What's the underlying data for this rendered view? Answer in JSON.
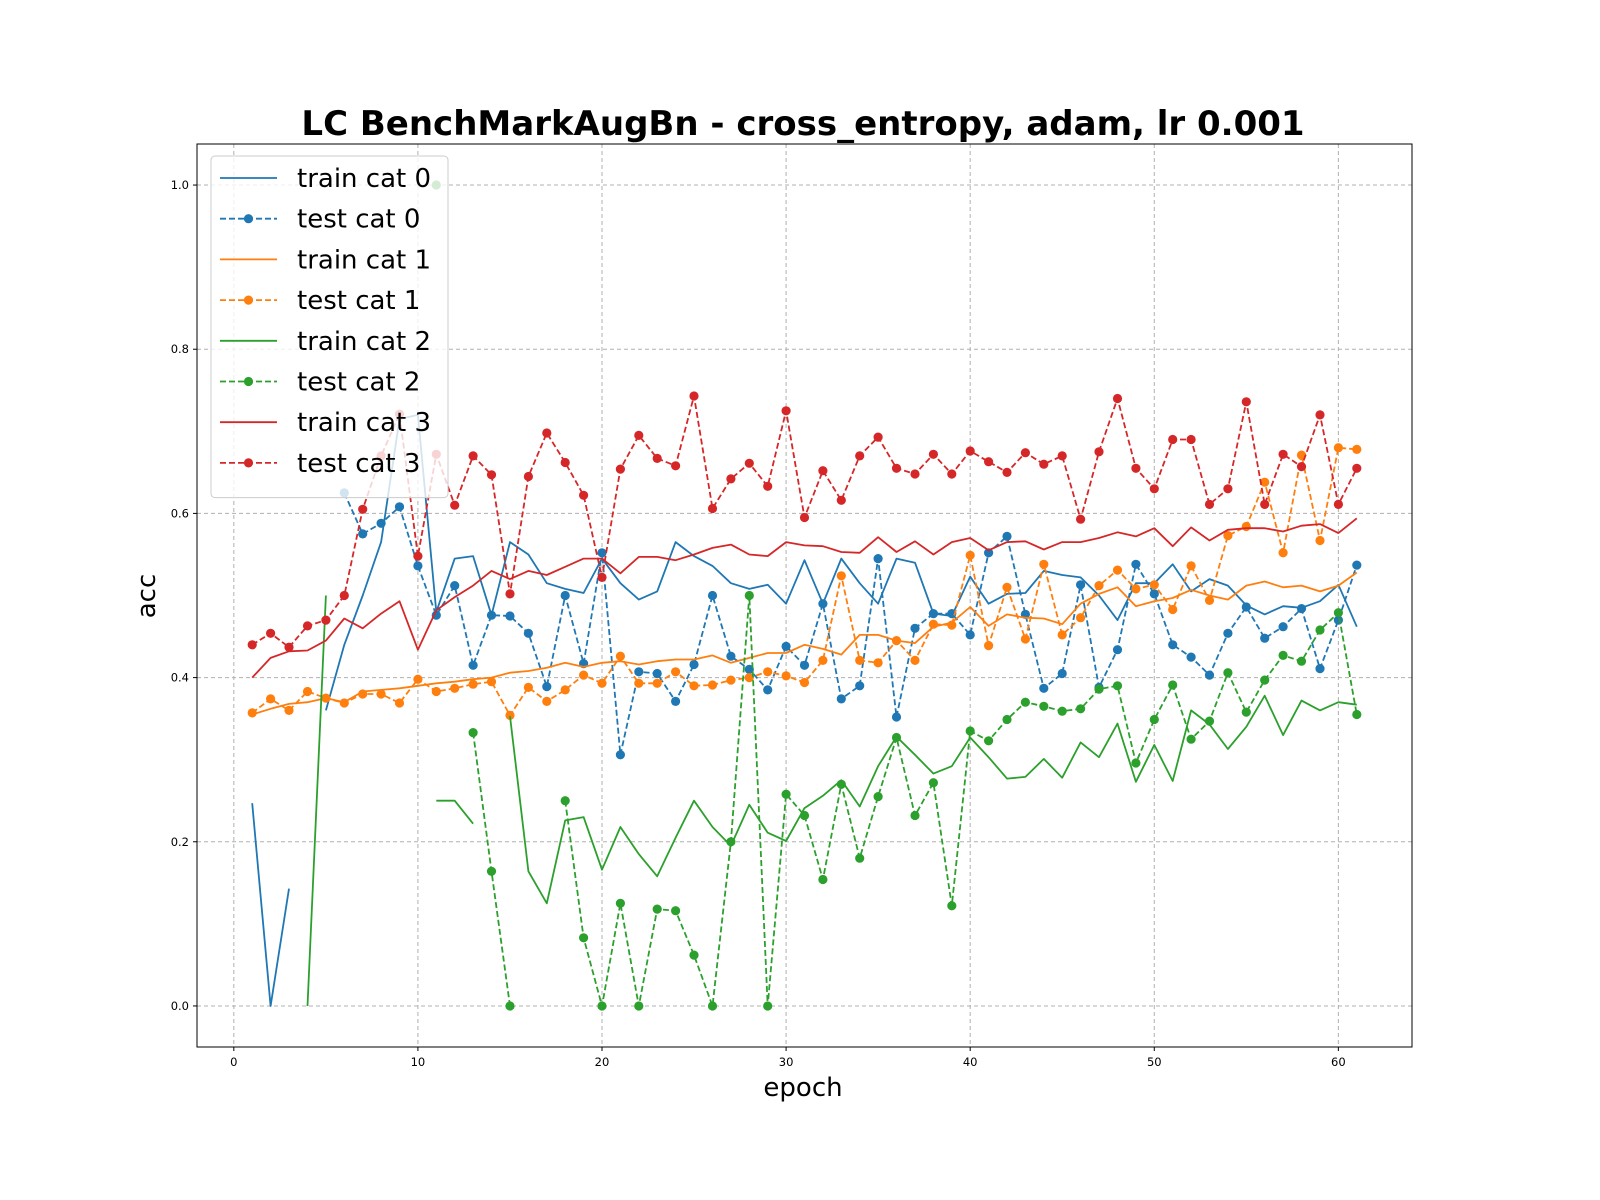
{
  "chart_data": {
    "type": "line",
    "title": "LC BenchMarkAugBn - cross_entropy, adam, lr 0.001",
    "xlabel": "epoch",
    "ylabel": "acc",
    "xlim": [
      -2,
      64
    ],
    "ylim": [
      -0.05,
      1.05
    ],
    "xticks": [
      0,
      10,
      20,
      30,
      40,
      50,
      60
    ],
    "yticks": [
      0.0,
      0.2,
      0.4,
      0.6,
      0.8,
      1.0
    ],
    "xtick_labels": [
      "0",
      "10",
      "20",
      "30",
      "40",
      "50",
      "60"
    ],
    "ytick_labels": [
      "0.0",
      "0.2",
      "0.4",
      "0.6",
      "0.8",
      "1.0"
    ],
    "grid": true,
    "legend_position": "top-left",
    "series": [
      {
        "name": "train cat 0",
        "color": "#1f77b4",
        "style": "solid",
        "marker": false,
        "x": [
          1,
          2,
          3,
          null,
          5,
          6,
          7,
          8,
          9,
          10,
          11,
          12,
          13,
          14,
          15,
          16,
          17,
          18,
          19,
          20,
          21,
          22,
          23,
          24,
          25,
          26,
          27,
          28,
          29,
          30,
          31,
          32,
          33,
          34,
          35,
          36,
          37,
          38,
          39,
          40,
          41,
          42,
          43,
          44,
          45,
          46,
          47,
          48,
          49,
          50,
          51,
          52,
          53,
          54,
          55,
          56,
          57,
          58,
          59,
          60,
          61
        ],
        "values": [
          0.247,
          0.0,
          0.143,
          null,
          0.36,
          0.44,
          0.5,
          0.565,
          0.715,
          0.72,
          0.48,
          0.545,
          0.548,
          0.476,
          0.565,
          0.55,
          0.515,
          0.508,
          0.503,
          0.545,
          0.515,
          0.495,
          0.505,
          0.565,
          0.548,
          0.536,
          0.515,
          0.508,
          0.513,
          0.49,
          0.543,
          0.49,
          0.545,
          0.515,
          0.49,
          0.545,
          0.54,
          0.478,
          0.475,
          0.523,
          0.49,
          0.502,
          0.503,
          0.53,
          0.525,
          0.522,
          0.5,
          0.47,
          0.515,
          0.515,
          0.538,
          0.505,
          0.52,
          0.512,
          0.488,
          0.477,
          0.487,
          0.485,
          0.493,
          0.513,
          0.462
        ]
      },
      {
        "name": "test cat 0",
        "color": "#1f77b4",
        "style": "dashed",
        "marker": true,
        "x": [
          6,
          7,
          8,
          9,
          10,
          11,
          12,
          13,
          14,
          15,
          16,
          17,
          18,
          19,
          20,
          21,
          22,
          23,
          24,
          25,
          26,
          27,
          28,
          29,
          30,
          31,
          32,
          33,
          34,
          35,
          36,
          37,
          38,
          39,
          40,
          41,
          42,
          43,
          44,
          45,
          46,
          47,
          48,
          49,
          50,
          51,
          52,
          53,
          54,
          55,
          56,
          57,
          58,
          59,
          60,
          61
        ],
        "values": [
          0.625,
          0.575,
          0.588,
          0.608,
          0.536,
          0.476,
          0.512,
          0.415,
          0.476,
          0.475,
          0.454,
          0.389,
          0.5,
          0.417,
          0.552,
          0.306,
          0.407,
          0.405,
          0.371,
          0.416,
          0.5,
          0.426,
          0.41,
          0.385,
          0.438,
          0.415,
          0.49,
          0.374,
          0.39,
          0.545,
          0.352,
          0.46,
          0.478,
          0.478,
          0.452,
          0.552,
          0.572,
          0.477,
          0.387,
          0.405,
          0.513,
          0.388,
          0.434,
          0.538,
          0.502,
          0.44,
          0.425,
          0.403,
          0.454,
          0.486,
          0.448,
          0.462,
          0.484,
          0.411,
          0.47,
          0.537
        ]
      },
      {
        "name": "train cat 1",
        "color": "#ff7f0e",
        "style": "solid",
        "marker": false,
        "x": [
          1,
          2,
          3,
          4,
          5,
          6,
          7,
          8,
          9,
          10,
          11,
          12,
          13,
          14,
          15,
          16,
          17,
          18,
          19,
          20,
          21,
          22,
          23,
          24,
          25,
          26,
          27,
          28,
          29,
          30,
          31,
          32,
          33,
          34,
          35,
          36,
          37,
          38,
          39,
          40,
          41,
          42,
          43,
          44,
          45,
          46,
          47,
          48,
          49,
          50,
          51,
          52,
          53,
          54,
          55,
          56,
          57,
          58,
          59,
          60,
          61
        ],
        "values": [
          0.355,
          0.362,
          0.368,
          0.37,
          0.375,
          0.37,
          0.383,
          0.385,
          0.387,
          0.39,
          0.393,
          0.395,
          0.398,
          0.4,
          0.406,
          0.408,
          0.412,
          0.418,
          0.413,
          0.418,
          0.42,
          0.416,
          0.42,
          0.422,
          0.422,
          0.427,
          0.418,
          0.424,
          0.43,
          0.43,
          0.44,
          0.435,
          0.428,
          0.452,
          0.452,
          0.445,
          0.442,
          0.462,
          0.467,
          0.486,
          0.463,
          0.477,
          0.473,
          0.472,
          0.465,
          0.49,
          0.502,
          0.51,
          0.487,
          0.493,
          0.497,
          0.507,
          0.5,
          0.495,
          0.512,
          0.517,
          0.51,
          0.512,
          0.505,
          0.512,
          0.528
        ]
      },
      {
        "name": "test cat 1",
        "color": "#ff7f0e",
        "style": "dashed",
        "marker": true,
        "x": [
          1,
          2,
          3,
          4,
          5,
          6,
          7,
          8,
          9,
          10,
          11,
          12,
          13,
          14,
          15,
          16,
          17,
          18,
          19,
          20,
          21,
          22,
          23,
          24,
          25,
          26,
          27,
          28,
          29,
          30,
          31,
          32,
          33,
          34,
          35,
          36,
          37,
          38,
          39,
          40,
          41,
          42,
          43,
          44,
          45,
          46,
          47,
          48,
          49,
          50,
          51,
          52,
          53,
          54,
          55,
          56,
          57,
          58,
          59,
          60,
          61
        ],
        "values": [
          0.357,
          0.374,
          0.36,
          0.383,
          0.375,
          0.369,
          0.38,
          0.38,
          0.369,
          0.398,
          0.383,
          0.387,
          0.392,
          0.395,
          0.354,
          0.388,
          0.371,
          0.385,
          0.403,
          0.393,
          0.426,
          0.393,
          0.393,
          0.407,
          0.39,
          0.391,
          0.397,
          0.4,
          0.407,
          0.402,
          0.394,
          0.421,
          0.524,
          0.421,
          0.418,
          0.445,
          0.421,
          0.465,
          0.464,
          0.549,
          0.439,
          0.51,
          0.447,
          0.538,
          0.452,
          0.473,
          0.512,
          0.531,
          0.508,
          0.513,
          0.483,
          0.536,
          0.494,
          0.573,
          0.584,
          0.638,
          0.552,
          0.671,
          0.567,
          0.68,
          0.678
        ]
      },
      {
        "name": "train cat 2",
        "color": "#2ca02c",
        "style": "solid",
        "marker": false,
        "x": [
          4,
          5,
          null,
          11,
          12,
          13,
          null,
          15,
          16,
          17,
          18,
          19,
          20,
          21,
          22,
          23,
          24,
          25,
          26,
          27,
          28,
          29,
          30,
          31,
          32,
          33,
          34,
          35,
          36,
          37,
          38,
          39,
          40,
          41,
          42,
          43,
          44,
          45,
          46,
          47,
          48,
          49,
          50,
          51,
          52,
          53,
          54,
          55,
          56,
          57,
          58,
          59,
          60,
          61
        ],
        "values": [
          0.0,
          0.5,
          null,
          0.25,
          0.25,
          0.222,
          null,
          0.353,
          0.164,
          0.125,
          0.226,
          0.23,
          0.166,
          0.218,
          0.185,
          0.158,
          0.205,
          0.25,
          0.218,
          0.195,
          0.245,
          0.211,
          0.201,
          0.241,
          0.256,
          0.275,
          0.243,
          0.292,
          0.328,
          0.306,
          0.283,
          0.292,
          0.327,
          0.303,
          0.277,
          0.279,
          0.301,
          0.278,
          0.321,
          0.303,
          0.344,
          0.273,
          0.318,
          0.274,
          0.36,
          0.343,
          0.313,
          0.34,
          0.378,
          0.33,
          0.372,
          0.36,
          0.37,
          0.367
        ]
      },
      {
        "name": "test cat 2",
        "color": "#2ca02c",
        "style": "dashed",
        "marker": true,
        "x": [
          11,
          null,
          13,
          14,
          15,
          null,
          18,
          19,
          20,
          21,
          22,
          23,
          24,
          25,
          26,
          27,
          28,
          29,
          30,
          31,
          32,
          33,
          34,
          35,
          36,
          37,
          38,
          39,
          40,
          41,
          42,
          43,
          44,
          45,
          46,
          47,
          48,
          49,
          50,
          51,
          52,
          53,
          54,
          55,
          56,
          57,
          58,
          59,
          60,
          61
        ],
        "values": [
          1.0,
          null,
          0.333,
          0.164,
          0.0,
          null,
          0.25,
          0.083,
          0.0,
          0.125,
          0.0,
          0.118,
          0.116,
          0.062,
          0.0,
          0.2,
          0.5,
          0.0,
          0.258,
          0.232,
          0.154,
          0.27,
          0.18,
          0.255,
          0.327,
          0.232,
          0.272,
          0.122,
          0.335,
          0.323,
          0.349,
          0.37,
          0.365,
          0.359,
          0.362,
          0.386,
          0.39,
          0.296,
          0.349,
          0.391,
          0.325,
          0.347,
          0.406,
          0.358,
          0.397,
          0.427,
          0.42,
          0.458,
          0.479,
          0.355
        ]
      },
      {
        "name": "train cat 3",
        "color": "#d62728",
        "style": "solid",
        "marker": false,
        "x": [
          1,
          2,
          3,
          4,
          5,
          6,
          7,
          8,
          9,
          10,
          11,
          12,
          13,
          14,
          15,
          16,
          17,
          18,
          19,
          20,
          21,
          22,
          23,
          24,
          25,
          26,
          27,
          28,
          29,
          30,
          31,
          32,
          33,
          34,
          35,
          36,
          37,
          38,
          39,
          40,
          41,
          42,
          43,
          44,
          45,
          46,
          47,
          48,
          49,
          50,
          51,
          52,
          53,
          54,
          55,
          56,
          57,
          58,
          59,
          60,
          61
        ],
        "values": [
          0.4,
          0.424,
          0.432,
          0.433,
          0.445,
          0.472,
          0.46,
          0.478,
          0.493,
          0.434,
          0.482,
          0.498,
          0.512,
          0.53,
          0.52,
          0.53,
          0.525,
          0.535,
          0.545,
          0.545,
          0.527,
          0.547,
          0.547,
          0.543,
          0.55,
          0.558,
          0.562,
          0.55,
          0.548,
          0.565,
          0.561,
          0.56,
          0.553,
          0.552,
          0.571,
          0.553,
          0.566,
          0.55,
          0.565,
          0.57,
          0.555,
          0.565,
          0.566,
          0.556,
          0.565,
          0.565,
          0.57,
          0.577,
          0.572,
          0.582,
          0.56,
          0.583,
          0.567,
          0.58,
          0.582,
          0.582,
          0.578,
          0.585,
          0.587,
          0.576,
          0.594
        ]
      },
      {
        "name": "test cat 3",
        "color": "#d62728",
        "style": "dashed",
        "marker": true,
        "x": [
          1,
          2,
          3,
          4,
          5,
          6,
          7,
          8,
          9,
          10,
          11,
          12,
          13,
          14,
          15,
          16,
          17,
          18,
          19,
          20,
          21,
          22,
          23,
          24,
          25,
          26,
          27,
          28,
          29,
          30,
          31,
          32,
          33,
          34,
          35,
          36,
          37,
          38,
          39,
          40,
          41,
          42,
          43,
          44,
          45,
          46,
          47,
          48,
          49,
          50,
          51,
          52,
          53,
          54,
          55,
          56,
          57,
          58,
          59,
          60,
          61
        ],
        "values": [
          0.44,
          0.454,
          0.437,
          0.463,
          0.47,
          0.5,
          0.605,
          0.67,
          0.721,
          0.548,
          0.672,
          0.61,
          0.67,
          0.647,
          0.502,
          0.645,
          0.698,
          0.662,
          0.622,
          0.522,
          0.654,
          0.695,
          0.667,
          0.658,
          0.743,
          0.606,
          0.642,
          0.661,
          0.633,
          0.725,
          0.595,
          0.652,
          0.616,
          0.67,
          0.693,
          0.655,
          0.648,
          0.672,
          0.648,
          0.676,
          0.663,
          0.65,
          0.674,
          0.66,
          0.67,
          0.593,
          0.675,
          0.74,
          0.655,
          0.63,
          0.69,
          0.69,
          0.611,
          0.63,
          0.736,
          0.611,
          0.672,
          0.657,
          0.72,
          0.611,
          0.655
        ]
      }
    ]
  }
}
